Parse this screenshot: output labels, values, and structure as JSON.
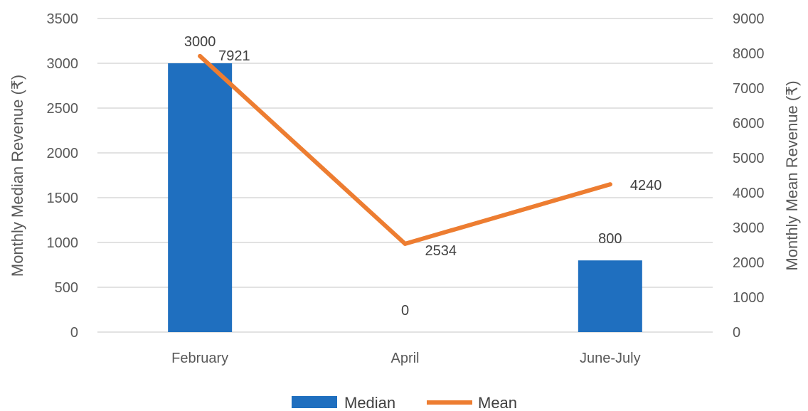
{
  "chart_data": {
    "type": "bar+line",
    "categories": [
      "February",
      "April",
      "June-July"
    ],
    "series": [
      {
        "name": "Median",
        "type": "bar",
        "axis": "left",
        "values": [
          3000,
          0,
          800
        ],
        "color": "#1F6FBF"
      },
      {
        "name": "Mean",
        "type": "line",
        "axis": "right",
        "values": [
          7921,
          2534,
          4240
        ],
        "color": "#ED7D31"
      }
    ],
    "ylabel_left": "Monthly Median Revenue (₹)",
    "ylabel_right": "Monthly Mean Revenue (₹)",
    "ylim_left": [
      0,
      3500
    ],
    "ylim_right": [
      0,
      9000
    ],
    "yticks_left": [
      0,
      500,
      1000,
      1500,
      2000,
      2500,
      3000,
      3500
    ],
    "yticks_right": [
      0,
      1000,
      2000,
      3000,
      4000,
      5000,
      6000,
      7000,
      8000,
      9000
    ],
    "grid": true,
    "legend_position": "bottom"
  }
}
